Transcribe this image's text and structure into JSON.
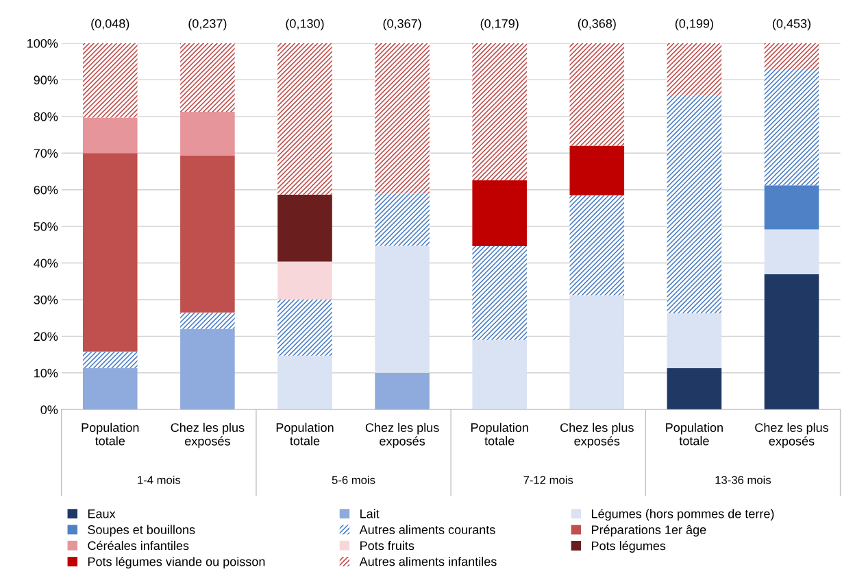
{
  "chart_data": {
    "type": "bar",
    "stacked": true,
    "categories": [
      "Population\ntotale",
      "Chez les plus\nexposés",
      "Population\ntotale",
      "Chez les plus\nexposés",
      "Population\ntotale",
      "Chez les plus\nexposés",
      "Population\ntotale",
      "Chez les plus\nexposés"
    ],
    "series": [
      {
        "name": "Eaux",
        "color": "#203864",
        "values": [
          0,
          0,
          0,
          0,
          0,
          0,
          11.3,
          36.9
        ]
      },
      {
        "name": "Lait",
        "color": "#8faadc",
        "values": [
          11.3,
          22,
          0,
          10,
          0,
          0,
          0,
          0
        ]
      },
      {
        "name": "Légumes (hors pommes de terre)",
        "color": "#dae3f3",
        "values": [
          0,
          0,
          14.7,
          34.7,
          19,
          31.2,
          15,
          12.3
        ]
      },
      {
        "name": "Soupes et bouillons",
        "color": "#4f81c7",
        "values": [
          0,
          0,
          0,
          0,
          0,
          0,
          0,
          12
        ]
      },
      {
        "name": "Autres aliments courants",
        "color": "#4f81c7",
        "values": [
          4.5,
          4.5,
          15.4,
          14.2,
          25.6,
          27.3,
          59.5,
          31.7
        ]
      },
      {
        "name": "Préparations 1er âge",
        "color": "#c0504d",
        "values": [
          54.2,
          42.9,
          0,
          0,
          0,
          0,
          0,
          0
        ]
      },
      {
        "name": "Céréales infantiles",
        "color": "#e6959a",
        "values": [
          9.7,
          11.9,
          0,
          0,
          0,
          0,
          0,
          0
        ]
      },
      {
        "name": "Pots fruits",
        "color": "#f8d7da",
        "values": [
          0,
          0,
          10.3,
          0,
          0,
          0,
          0,
          0
        ]
      },
      {
        "name": "Pots légumes",
        "color": "#6b1e1e",
        "values": [
          0,
          0,
          18.3,
          0,
          0,
          0,
          0,
          0
        ]
      },
      {
        "name": "Pots légumes viande ou poisson",
        "color": "#c00000",
        "values": [
          0,
          0,
          0,
          0,
          18,
          13.5,
          0,
          0
        ]
      },
      {
        "name": "Autres aliments infantiles",
        "color": "#c0504d",
        "values": [
          20.3,
          18.7,
          41.3,
          41.1,
          37.4,
          28,
          14.2,
          7.1
        ]
      }
    ],
    "ylim": [
      0,
      100
    ],
    "yticks": [
      {
        "value": 0,
        "label": "0%"
      },
      {
        "value": 10,
        "label": "10%"
      },
      {
        "value": 20,
        "label": "20%"
      },
      {
        "value": 30,
        "label": "30%"
      },
      {
        "value": 40,
        "label": "40%"
      },
      {
        "value": 50,
        "label": "50%"
      },
      {
        "value": 60,
        "label": "60%"
      },
      {
        "value": 70,
        "label": "70%"
      },
      {
        "value": 80,
        "label": "80%"
      },
      {
        "value": 90,
        "label": "90%"
      },
      {
        "value": 100,
        "label": "100%"
      }
    ],
    "grid": "y",
    "legend": "bottom",
    "annotations": [
      "(0,048)",
      "(0,237)",
      "(0,130)",
      "(0,367)",
      "(0,179)",
      "(0,368)",
      "(0,199)",
      "(0,453)",
      "1-4 mois",
      "5-6 mois",
      "7-12 mois",
      "13-36 mois"
    ]
  }
}
